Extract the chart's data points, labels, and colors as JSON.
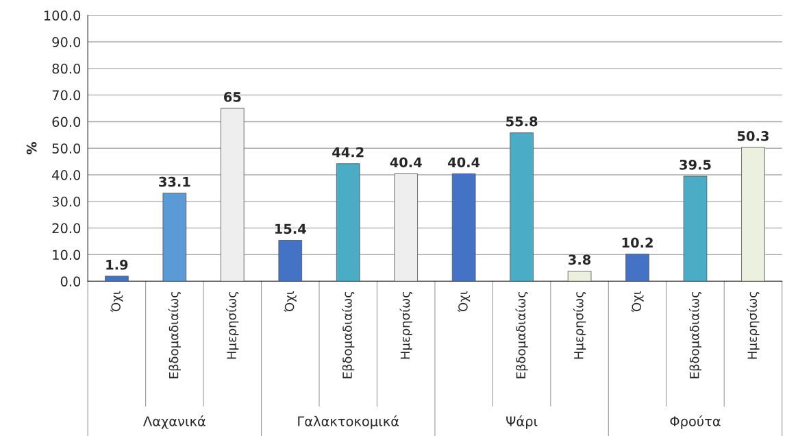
{
  "chart_data": {
    "type": "bar",
    "ylabel": "%",
    "categories": [
      "Όχι",
      "Εβδομαδιαίως",
      "Ημερησίως",
      "Όχι",
      "Εβδομαδιαίως",
      "Ημερησίως",
      "Όχι",
      "Εβδομαδιαίως",
      "Ημερησίως",
      "Όχι",
      "Εβδομαδιαίως",
      "Ημερησίως"
    ],
    "values": [
      1.9,
      33.1,
      65,
      15.4,
      44.2,
      40.4,
      40.4,
      55.8,
      3.8,
      10.2,
      39.5,
      50.3
    ],
    "colors": [
      "#4472c4",
      "#5b9bd5",
      "#eeeeee",
      "#4472c4",
      "#4bacc6",
      "#eeeeee",
      "#4472c4",
      "#4bacc6",
      "#ebf1de",
      "#4472c4",
      "#4bacc6",
      "#ebf1de"
    ],
    "annotations": [
      "Λαχανικά",
      "Γαλακτοκομικά",
      "Ψάρι",
      "Φρούτα"
    ],
    "data_labels": true,
    "grid": "y",
    "ylim": [
      0,
      100
    ],
    "yticks": [
      {
        "value": 0,
        "label": "0.0"
      },
      {
        "value": 10,
        "label": "10.0"
      },
      {
        "value": 20,
        "label": "20.0"
      },
      {
        "value": 30,
        "label": "30.0"
      },
      {
        "value": 40,
        "label": "40.0"
      },
      {
        "value": 50,
        "label": "50.0"
      },
      {
        "value": 60,
        "label": "60.0"
      },
      {
        "value": 70,
        "label": "70.0"
      },
      {
        "value": 80,
        "label": "80.0"
      },
      {
        "value": 90,
        "label": "90.0"
      },
      {
        "value": 100,
        "label": "100.0"
      }
    ]
  }
}
